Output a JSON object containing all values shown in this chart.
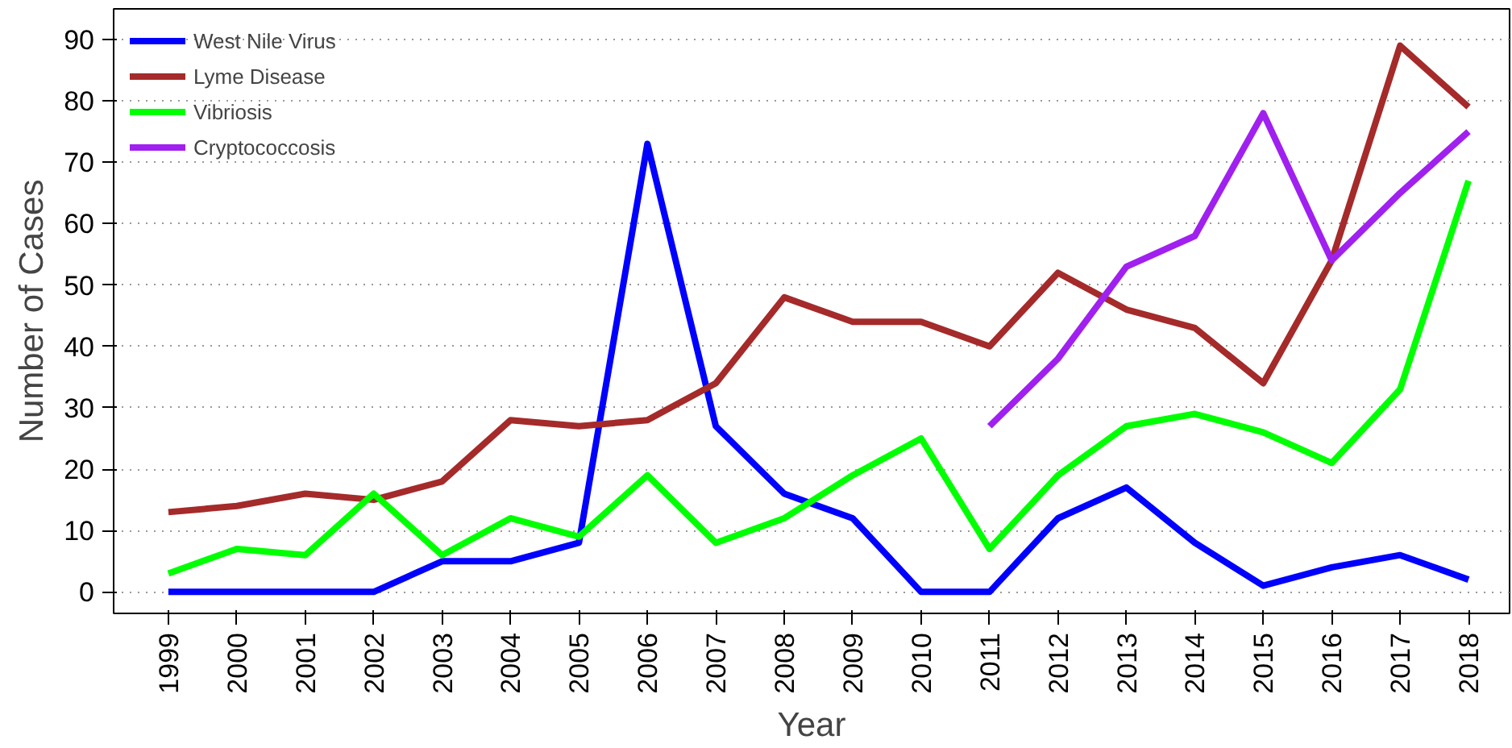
{
  "chart_data": {
    "type": "line",
    "xlabel": "Year",
    "ylabel": "Number of Cases",
    "categories": [
      "1999",
      "2000",
      "2001",
      "2002",
      "2003",
      "2004",
      "2005",
      "2006",
      "2007",
      "2008",
      "2009",
      "2010",
      "2011",
      "2012",
      "2013",
      "2014",
      "2015",
      "2016",
      "2017",
      "2018"
    ],
    "series": [
      {
        "name": "West Nile Virus",
        "color": "#0000ff",
        "values": [
          0,
          0,
          0,
          0,
          5,
          5,
          8,
          73,
          27,
          16,
          12,
          0,
          0,
          12,
          17,
          8,
          1,
          4,
          6,
          2
        ]
      },
      {
        "name": "Lyme Disease",
        "color": "#a52a2a",
        "values": [
          13,
          14,
          16,
          15,
          18,
          28,
          27,
          28,
          34,
          48,
          44,
          44,
          40,
          52,
          46,
          43,
          34,
          54,
          89,
          79
        ]
      },
      {
        "name": "Vibriosis",
        "color": "#00ff00",
        "values": [
          3,
          7,
          6,
          16,
          6,
          12,
          9,
          19,
          8,
          12,
          19,
          25,
          7,
          19,
          27,
          29,
          26,
          21,
          33,
          67
        ]
      },
      {
        "name": "Cryptococcosis",
        "color": "#a020f0",
        "values": [
          null,
          null,
          null,
          null,
          null,
          null,
          null,
          null,
          null,
          null,
          null,
          null,
          27,
          38,
          53,
          58,
          78,
          54,
          65,
          75
        ]
      }
    ],
    "ylim": [
      -3.5,
      95
    ],
    "yticks": [
      0,
      10,
      20,
      30,
      40,
      50,
      60,
      70,
      80,
      90
    ],
    "grid": "y",
    "legend": "top left",
    "line_style": "solid",
    "marker": "none"
  }
}
